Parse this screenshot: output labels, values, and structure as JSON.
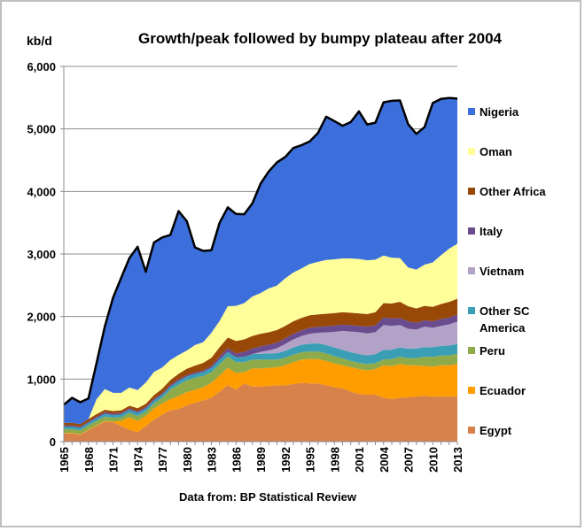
{
  "chart_data": {
    "type": "area",
    "title": "Growth/peak followed by bumpy plateau after 2004",
    "ylabel": "kb/d",
    "source_note": "Data from: BP Statistical Review",
    "ylim": [
      0,
      6000
    ],
    "y_ticks": [
      "0",
      "1,000",
      "2,000",
      "3,000",
      "4,000",
      "5,000",
      "6,000"
    ],
    "y_tick_values": [
      0,
      1000,
      2000,
      3000,
      4000,
      5000,
      6000
    ],
    "x_tick_labels": [
      "1965",
      "1968",
      "1971",
      "1974",
      "1977",
      "1980",
      "1983",
      "1986",
      "1989",
      "1992",
      "1995",
      "1998",
      "2001",
      "2004",
      "2007",
      "2010",
      "2013"
    ],
    "x": [
      1965,
      1966,
      1967,
      1968,
      1969,
      1970,
      1971,
      1972,
      1973,
      1974,
      1975,
      1976,
      1977,
      1978,
      1979,
      1980,
      1981,
      1982,
      1983,
      1984,
      1985,
      1986,
      1987,
      1988,
      1989,
      1990,
      1991,
      1992,
      1993,
      1994,
      1995,
      1996,
      1997,
      1998,
      1999,
      2000,
      2001,
      2002,
      2003,
      2004,
      2005,
      2006,
      2007,
      2008,
      2009,
      2010,
      2011,
      2012,
      2013
    ],
    "grid": true,
    "stacked": true,
    "total_line": true,
    "legend_position": "right",
    "series": [
      {
        "name": "Egypt",
        "color": "#d6824a",
        "values": [
          130,
          130,
          110,
          180,
          250,
          320,
          310,
          250,
          190,
          150,
          250,
          350,
          430,
          500,
          520,
          580,
          620,
          660,
          700,
          800,
          900,
          830,
          930,
          880,
          880,
          890,
          900,
          900,
          920,
          940,
          930,
          930,
          900,
          870,
          850,
          800,
          760,
          750,
          750,
          700,
          680,
          700,
          710,
          720,
          730,
          720,
          720,
          720,
          720
        ]
      },
      {
        "name": "Ecuador",
        "color": "#ff9c00",
        "values": [
          10,
          10,
          10,
          10,
          10,
          10,
          10,
          80,
          200,
          180,
          160,
          180,
          180,
          180,
          210,
          210,
          210,
          210,
          240,
          260,
          280,
          270,
          180,
          290,
          290,
          290,
          290,
          320,
          350,
          370,
          390,
          390,
          390,
          380,
          370,
          390,
          400,
          390,
          410,
          520,
          530,
          540,
          510,
          500,
          480,
          480,
          500,
          500,
          520
        ]
      },
      {
        "name": "Peru",
        "color": "#8faa48",
        "values": [
          60,
          60,
          60,
          70,
          70,
          70,
          60,
          60,
          70,
          80,
          70,
          80,
          90,
          150,
          180,
          190,
          190,
          180,
          170,
          180,
          180,
          170,
          160,
          140,
          140,
          130,
          120,
          120,
          120,
          120,
          120,
          120,
          120,
          115,
          110,
          100,
          100,
          100,
          95,
          95,
          110,
          115,
          115,
          115,
          145,
          155,
          155,
          160,
          165
        ]
      },
      {
        "name": "Other SC America",
        "color": "#3a9fb5",
        "values": [
          40,
          40,
          40,
          40,
          45,
          45,
          45,
          45,
          50,
          50,
          50,
          50,
          50,
          50,
          60,
          60,
          60,
          65,
          70,
          70,
          75,
          80,
          85,
          90,
          95,
          100,
          105,
          110,
          115,
          120,
          125,
          130,
          135,
          140,
          140,
          140,
          140,
          140,
          145,
          150,
          150,
          150,
          150,
          155,
          155,
          155,
          155,
          155,
          155
        ]
      },
      {
        "name": "Vietnam",
        "color": "#b3a2c7",
        "values": [
          0,
          0,
          0,
          0,
          0,
          0,
          0,
          0,
          0,
          0,
          0,
          0,
          0,
          0,
          0,
          0,
          0,
          0,
          0,
          0,
          0,
          0,
          0,
          0,
          30,
          50,
          80,
          110,
          130,
          140,
          160,
          170,
          200,
          250,
          300,
          330,
          350,
          350,
          350,
          400,
          380,
          360,
          320,
          300,
          330,
          310,
          320,
          340,
          360
        ]
      },
      {
        "name": "Italy",
        "color": "#6a4b8e",
        "values": [
          20,
          20,
          20,
          20,
          25,
          25,
          25,
          25,
          25,
          25,
          25,
          25,
          25,
          25,
          25,
          25,
          25,
          25,
          30,
          50,
          60,
          60,
          80,
          90,
          90,
          90,
          90,
          90,
          90,
          90,
          95,
          95,
          100,
          100,
          100,
          100,
          100,
          110,
          110,
          120,
          120,
          110,
          120,
          110,
          100,
          105,
          110,
          110,
          115
        ]
      },
      {
        "name": "Other Africa",
        "color": "#984807",
        "values": [
          40,
          40,
          40,
          40,
          40,
          40,
          40,
          40,
          40,
          50,
          50,
          60,
          70,
          80,
          90,
          100,
          110,
          120,
          130,
          150,
          170,
          200,
          200,
          200,
          200,
          200,
          200,
          200,
          200,
          200,
          200,
          200,
          200,
          200,
          200,
          200,
          200,
          200,
          210,
          230,
          240,
          260,
          240,
          230,
          230,
          230,
          240,
          250,
          250
        ]
      },
      {
        "name": "Oman",
        "color": "#ffff99",
        "values": [
          0,
          0,
          0,
          0,
          240,
          330,
          290,
          280,
          290,
          290,
          340,
          370,
          340,
          320,
          300,
          290,
          330,
          330,
          400,
          420,
          500,
          560,
          580,
          630,
          650,
          700,
          710,
          760,
          780,
          790,
          820,
          840,
          860,
          860,
          860,
          870,
          870,
          860,
          840,
          760,
          730,
          700,
          620,
          620,
          660,
          710,
          780,
          850,
          880
        ]
      },
      {
        "name": "Nigeria",
        "color": "#3c6fdc",
        "values": [
          290,
          400,
          350,
          330,
          580,
          1000,
          1520,
          1840,
          2070,
          2290,
          1770,
          2070,
          2080,
          2000,
          2300,
          2070,
          1560,
          1460,
          1320,
          1570,
          1580,
          1470,
          1420,
          1490,
          1750,
          1870,
          1970,
          1940,
          1990,
          1970,
          1960,
          2060,
          2290,
          2210,
          2120,
          2180,
          2360,
          2170,
          2190,
          2450,
          2510,
          2520,
          2290,
          2170,
          2200,
          2550,
          2500,
          2410,
          2320
        ]
      }
    ],
    "legend_order": [
      "Nigeria",
      "Oman",
      "Other Africa",
      "Italy",
      "Vietnam",
      "Other SC America",
      "Peru",
      "Ecuador",
      "Egypt"
    ]
  }
}
